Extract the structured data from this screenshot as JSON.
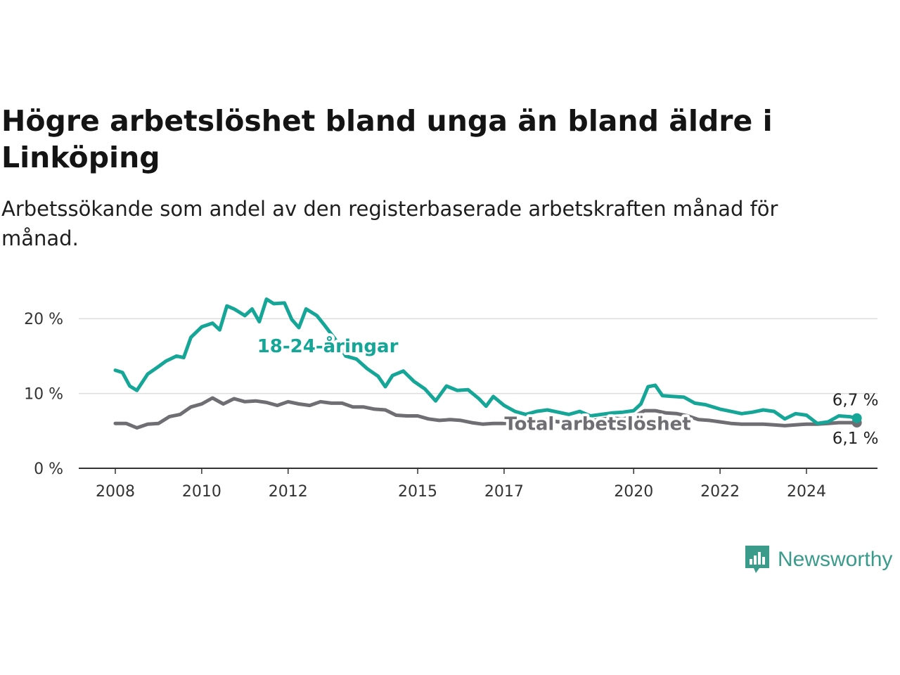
{
  "header": {
    "title": "Högre arbetslöshet bland unga än bland äldre i Linköping",
    "subtitle": "Arbetssökande som andel av den registerbaserade arbetskraften månad för månad."
  },
  "brand": {
    "name": "Newsworthy",
    "icon": "newsworthy-logo-icon",
    "color": "#3a9b8b"
  },
  "chart_data": {
    "type": "line",
    "x_type": "date",
    "xlim": [
      "2008-01",
      "2025-06"
    ],
    "ylim": [
      0,
      25
    ],
    "grid": true,
    "y_ticks": [
      {
        "value": 0,
        "label": "0 %"
      },
      {
        "value": 10,
        "label": "10 %"
      },
      {
        "value": 20,
        "label": "20 %"
      }
    ],
    "x_ticks": [
      {
        "value": "2008-01",
        "label": "2008"
      },
      {
        "value": "2010-01",
        "label": "2010"
      },
      {
        "value": "2012-01",
        "label": "2012"
      },
      {
        "value": "2015-01",
        "label": "2015"
      },
      {
        "value": "2017-01",
        "label": "2017"
      },
      {
        "value": "2020-01",
        "label": "2020"
      },
      {
        "value": "2022-01",
        "label": "2022"
      },
      {
        "value": "2024-01",
        "label": "2024"
      }
    ],
    "series": [
      {
        "name": "Total arbetslöshet",
        "color": "#6e6e73",
        "end_label": "6,1 %",
        "points": [
          [
            "2008-01",
            6.0
          ],
          [
            "2008-04",
            6.0
          ],
          [
            "2008-07",
            5.4
          ],
          [
            "2008-10",
            5.9
          ],
          [
            "2009-01",
            6.0
          ],
          [
            "2009-04",
            6.9
          ],
          [
            "2009-07",
            7.2
          ],
          [
            "2009-10",
            8.2
          ],
          [
            "2010-01",
            8.6
          ],
          [
            "2010-04",
            9.4
          ],
          [
            "2010-07",
            8.6
          ],
          [
            "2010-10",
            9.3
          ],
          [
            "2011-01",
            8.9
          ],
          [
            "2011-04",
            9.0
          ],
          [
            "2011-07",
            8.8
          ],
          [
            "2011-10",
            8.4
          ],
          [
            "2012-01",
            8.9
          ],
          [
            "2012-04",
            8.6
          ],
          [
            "2012-07",
            8.4
          ],
          [
            "2012-10",
            8.9
          ],
          [
            "2013-01",
            8.7
          ],
          [
            "2013-04",
            8.7
          ],
          [
            "2013-07",
            8.2
          ],
          [
            "2013-10",
            8.2
          ],
          [
            "2014-01",
            7.9
          ],
          [
            "2014-04",
            7.8
          ],
          [
            "2014-07",
            7.1
          ],
          [
            "2014-10",
            7.0
          ],
          [
            "2015-01",
            7.0
          ],
          [
            "2015-04",
            6.6
          ],
          [
            "2015-07",
            6.4
          ],
          [
            "2015-10",
            6.5
          ],
          [
            "2016-01",
            6.4
          ],
          [
            "2016-04",
            6.1
          ],
          [
            "2016-07",
            5.9
          ],
          [
            "2016-10",
            6.0
          ],
          [
            "2017-01",
            6.0
          ],
          [
            "2017-04",
            6.1
          ],
          [
            "2017-07",
            6.4
          ],
          [
            "2017-10",
            6.3
          ],
          [
            "2018-01",
            6.5
          ],
          [
            "2018-04",
            6.2
          ],
          [
            "2018-07",
            6.4
          ],
          [
            "2018-10",
            6.2
          ],
          [
            "2019-01",
            6.3
          ],
          [
            "2019-04",
            6.6
          ],
          [
            "2019-07",
            6.7
          ],
          [
            "2019-10",
            6.6
          ],
          [
            "2020-01",
            6.9
          ],
          [
            "2020-04",
            7.7
          ],
          [
            "2020-07",
            7.7
          ],
          [
            "2020-10",
            7.4
          ],
          [
            "2021-01",
            7.3
          ],
          [
            "2021-04",
            7.0
          ],
          [
            "2021-07",
            6.5
          ],
          [
            "2021-10",
            6.4
          ],
          [
            "2022-01",
            6.2
          ],
          [
            "2022-04",
            6.0
          ],
          [
            "2022-07",
            5.9
          ],
          [
            "2022-10",
            5.9
          ],
          [
            "2023-01",
            5.9
          ],
          [
            "2023-04",
            5.8
          ],
          [
            "2023-07",
            5.7
          ],
          [
            "2023-10",
            5.8
          ],
          [
            "2024-01",
            5.9
          ],
          [
            "2024-04",
            5.9
          ],
          [
            "2024-07",
            6.0
          ],
          [
            "2024-10",
            6.1
          ],
          [
            "2025-01",
            6.1
          ],
          [
            "2025-03",
            6.1
          ]
        ]
      },
      {
        "name": "18-24-åringar",
        "color": "#16a697",
        "end_label": "6,7 %",
        "points": [
          [
            "2008-01",
            13.1
          ],
          [
            "2008-03",
            12.8
          ],
          [
            "2008-05",
            11.0
          ],
          [
            "2008-07",
            10.4
          ],
          [
            "2008-10",
            12.6
          ],
          [
            "2009-01",
            13.6
          ],
          [
            "2009-03",
            14.3
          ],
          [
            "2009-06",
            15.0
          ],
          [
            "2009-08",
            14.8
          ],
          [
            "2009-10",
            17.5
          ],
          [
            "2010-01",
            18.9
          ],
          [
            "2010-04",
            19.4
          ],
          [
            "2010-06",
            18.5
          ],
          [
            "2010-08",
            21.7
          ],
          [
            "2010-10",
            21.3
          ],
          [
            "2011-01",
            20.4
          ],
          [
            "2011-03",
            21.3
          ],
          [
            "2011-05",
            19.6
          ],
          [
            "2011-07",
            22.6
          ],
          [
            "2011-09",
            22.0
          ],
          [
            "2011-12",
            22.1
          ],
          [
            "2012-02",
            19.9
          ],
          [
            "2012-04",
            18.8
          ],
          [
            "2012-06",
            21.3
          ],
          [
            "2012-09",
            20.4
          ],
          [
            "2012-11",
            19.2
          ],
          [
            "2013-02",
            17.3
          ],
          [
            "2013-05",
            15.0
          ],
          [
            "2013-08",
            14.6
          ],
          [
            "2013-11",
            13.3
          ],
          [
            "2014-02",
            12.3
          ],
          [
            "2014-04",
            10.9
          ],
          [
            "2014-06",
            12.4
          ],
          [
            "2014-09",
            13.0
          ],
          [
            "2014-12",
            11.6
          ],
          [
            "2015-03",
            10.6
          ],
          [
            "2015-06",
            9.0
          ],
          [
            "2015-09",
            11.0
          ],
          [
            "2015-12",
            10.4
          ],
          [
            "2016-03",
            10.5
          ],
          [
            "2016-06",
            9.3
          ],
          [
            "2016-08",
            8.3
          ],
          [
            "2016-10",
            9.6
          ],
          [
            "2017-01",
            8.4
          ],
          [
            "2017-04",
            7.6
          ],
          [
            "2017-07",
            7.2
          ],
          [
            "2017-10",
            7.6
          ],
          [
            "2018-01",
            7.8
          ],
          [
            "2018-04",
            7.5
          ],
          [
            "2018-07",
            7.2
          ],
          [
            "2018-10",
            7.6
          ],
          [
            "2019-01",
            7.0
          ],
          [
            "2019-04",
            7.2
          ],
          [
            "2019-07",
            7.4
          ],
          [
            "2019-10",
            7.5
          ],
          [
            "2020-01",
            7.7
          ],
          [
            "2020-03",
            8.6
          ],
          [
            "2020-05",
            10.9
          ],
          [
            "2020-07",
            11.1
          ],
          [
            "2020-09",
            9.7
          ],
          [
            "2020-12",
            9.6
          ],
          [
            "2021-03",
            9.5
          ],
          [
            "2021-06",
            8.7
          ],
          [
            "2021-09",
            8.5
          ],
          [
            "2022-01",
            7.9
          ],
          [
            "2022-04",
            7.6
          ],
          [
            "2022-07",
            7.3
          ],
          [
            "2022-10",
            7.5
          ],
          [
            "2023-01",
            7.8
          ],
          [
            "2023-04",
            7.6
          ],
          [
            "2023-07",
            6.6
          ],
          [
            "2023-10",
            7.3
          ],
          [
            "2024-01",
            7.1
          ],
          [
            "2024-04",
            6.0
          ],
          [
            "2024-07",
            6.2
          ],
          [
            "2024-10",
            7.0
          ],
          [
            "2025-01",
            6.9
          ],
          [
            "2025-03",
            6.7
          ]
        ]
      }
    ]
  }
}
